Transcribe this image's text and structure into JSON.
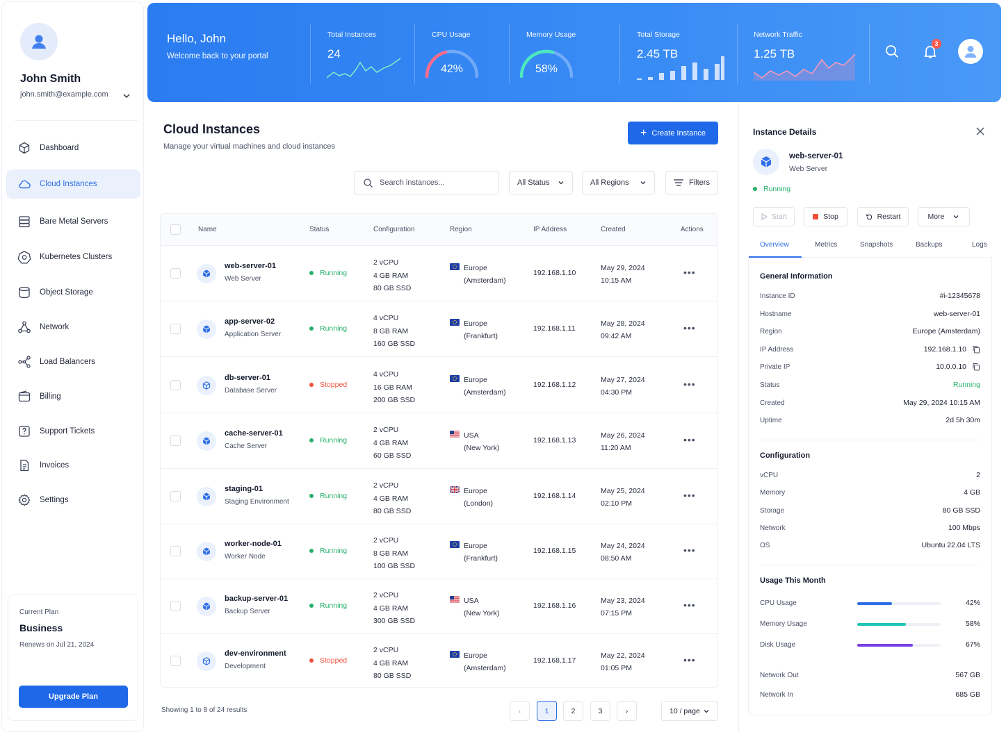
{
  "user": {
    "name": "John Smith",
    "email": "john.smith@example.com"
  },
  "nav": [
    {
      "label": "Dashboard",
      "icon": "cube-icon",
      "active": false
    },
    {
      "label": "Cloud Instances",
      "icon": "cloud-icon",
      "active": true
    },
    {
      "label": "Bare Metal Servers",
      "icon": "server-icon",
      "active": false
    },
    {
      "label": "Kubernetes Clusters",
      "icon": "kubernetes-icon",
      "active": false
    },
    {
      "label": "Object Storage",
      "icon": "storage-icon",
      "active": false
    },
    {
      "label": "Network",
      "icon": "network-icon",
      "active": false
    },
    {
      "label": "Load Balancers",
      "icon": "load-balancer-icon",
      "active": false
    },
    {
      "label": "Billing",
      "icon": "wallet-icon",
      "active": false
    },
    {
      "label": "Support Tickets",
      "icon": "ticket-icon",
      "active": false
    },
    {
      "label": "Invoices",
      "icon": "invoice-icon",
      "active": false
    },
    {
      "label": "Settings",
      "icon": "gear-icon",
      "active": false
    }
  ],
  "plan": {
    "label": "Current Plan",
    "name": "Business",
    "renews": "Renews on Jul 21, 2024",
    "upgrade_label": "Upgrade Plan"
  },
  "banner": {
    "hello": "Hello, John",
    "welcome": "Welcome back to your portal",
    "total_instances": {
      "label": "Total Instances",
      "value": "24"
    },
    "cpu": {
      "label": "CPU Usage",
      "value": "42%",
      "pct": 42
    },
    "memory": {
      "label": "Memory Usage",
      "value": "58%",
      "pct": 58
    },
    "storage": {
      "label": "Total Storage",
      "value": "2.45 TB"
    },
    "network": {
      "label": "Network Traffic",
      "value": "1.25 TB"
    },
    "notification_count": "3"
  },
  "main": {
    "title": "Cloud Instances",
    "subtitle": "Manage your virtual machines and cloud instances",
    "create_label": "Create Instance",
    "search_placeholder": "Search instances...",
    "status_filter": "All Status",
    "region_filter": "All Regions",
    "filters_label": "Filters",
    "columns": [
      "Name",
      "Status",
      "Configuration",
      "Region",
      "IP Address",
      "Created",
      "Actions"
    ],
    "rows": [
      {
        "name": "web-server-01",
        "role": "Web Server",
        "status": "Running",
        "cpu": "2 vCPU",
        "ram": "4 GB RAM",
        "disk": "80 GB SSD",
        "flag": "eu",
        "region1": "Europe",
        "region2": "(Amsterdam)",
        "ip": "192.168.1.10",
        "date": "May 29, 2024",
        "time": "10:15 AM"
      },
      {
        "name": "app-server-02",
        "role": "Application Server",
        "status": "Running",
        "cpu": "4 vCPU",
        "ram": "8 GB RAM",
        "disk": "160 GB SSD",
        "flag": "eu",
        "region1": "Europe",
        "region2": "(Frankfurt)",
        "ip": "192.168.1.11",
        "date": "May 28, 2024",
        "time": "09:42 AM"
      },
      {
        "name": "db-server-01",
        "role": "Database Server",
        "status": "Stopped",
        "cpu": "4 vCPU",
        "ram": "16 GB RAM",
        "disk": "200 GB SSD",
        "flag": "eu",
        "region1": "Europe",
        "region2": "(Amsterdam)",
        "ip": "192.168.1.12",
        "date": "May 27, 2024",
        "time": "04:30 PM"
      },
      {
        "name": "cache-server-01",
        "role": "Cache Server",
        "status": "Running",
        "cpu": "2 vCPU",
        "ram": "4 GB RAM",
        "disk": "60 GB SSD",
        "flag": "us",
        "region1": "USA",
        "region2": "(New York)",
        "ip": "192.168.1.13",
        "date": "May 26, 2024",
        "time": "11:20 AM"
      },
      {
        "name": "staging-01",
        "role": "Staging Environment",
        "status": "Running",
        "cpu": "2 vCPU",
        "ram": "4 GB RAM",
        "disk": "80 GB SSD",
        "flag": "uk",
        "region1": "Europe",
        "region2": "(London)",
        "ip": "192.168.1.14",
        "date": "May 25, 2024",
        "time": "02:10 PM"
      },
      {
        "name": "worker-node-01",
        "role": "Worker Node",
        "status": "Running",
        "cpu": "2 vCPU",
        "ram": "8 GB RAM",
        "disk": "100 GB SSD",
        "flag": "eu",
        "region1": "Europe",
        "region2": "(Frankfurt)",
        "ip": "192.168.1.15",
        "date": "May 24, 2024",
        "time": "08:50 AM"
      },
      {
        "name": "backup-server-01",
        "role": "Backup Server",
        "status": "Running",
        "cpu": "2 vCPU",
        "ram": "4 GB RAM",
        "disk": "300 GB SSD",
        "flag": "us",
        "region1": "USA",
        "region2": "(New York)",
        "ip": "192.168.1.16",
        "date": "May 23, 2024",
        "time": "07:15 PM"
      },
      {
        "name": "dev-environment",
        "role": "Development",
        "status": "Stopped",
        "cpu": "2 vCPU",
        "ram": "4 GB RAM",
        "disk": "80 GB SSD",
        "flag": "eu",
        "region1": "Europe",
        "region2": "(Amsterdam)",
        "ip": "192.168.1.17",
        "date": "May 22, 2024",
        "time": "01:05 PM"
      }
    ],
    "footer": "Showing 1 to 8 of 24 results",
    "pages": [
      "1",
      "2",
      "3"
    ],
    "current_page": "1",
    "per_page": "10 / page"
  },
  "detail": {
    "title": "Instance Details",
    "name": "web-server-01",
    "role": "Web Server",
    "status": "Running",
    "actions": {
      "start": "Start",
      "stop": "Stop",
      "restart": "Restart",
      "more": "More"
    },
    "tabs": [
      "Overview",
      "Metrics",
      "Snapshots",
      "Backups",
      "Logs"
    ],
    "general_title": "General Information",
    "general": [
      {
        "k": "Instance ID",
        "v": "#i-12345678"
      },
      {
        "k": "Hostname",
        "v": "web-server-01"
      },
      {
        "k": "Region",
        "v": "Europe (Amsterdam)"
      },
      {
        "k": "IP Address",
        "v": "192.168.1.10",
        "copy": true
      },
      {
        "k": "Private IP",
        "v": "10.0.0.10",
        "copy": true
      },
      {
        "k": "Status",
        "v": "Running",
        "status": true
      },
      {
        "k": "Created",
        "v": "May 29, 2024 10:15 AM"
      },
      {
        "k": "Uptime",
        "v": "2d 5h 30m"
      }
    ],
    "config_title": "Configuration",
    "config": [
      {
        "k": "vCPU",
        "v": "2"
      },
      {
        "k": "Memory",
        "v": "4 GB"
      },
      {
        "k": "Storage",
        "v": "80 GB SSD"
      },
      {
        "k": "Network",
        "v": "100 Mbps"
      },
      {
        "k": "OS",
        "v": "Ubuntu 22.04 LTS"
      }
    ],
    "usage_title": "Usage This Month",
    "usage": [
      {
        "k": "CPU Usage",
        "v": "42%",
        "pct": 42,
        "color": "#2f6fe6"
      },
      {
        "k": "Memory Usage",
        "v": "58%",
        "pct": 58,
        "color": "#1fc4b4"
      },
      {
        "k": "Disk Usage",
        "v": "67%",
        "pct": 67,
        "color": "#7b3fe4"
      }
    ],
    "network_out": {
      "k": "Network Out",
      "v": "567 GB"
    },
    "network_in": {
      "k": "Network In",
      "v": "685 GB"
    }
  },
  "colors": {
    "accent": "#1f69e8",
    "running": "#27b06a",
    "stopped": "#f0503c"
  }
}
